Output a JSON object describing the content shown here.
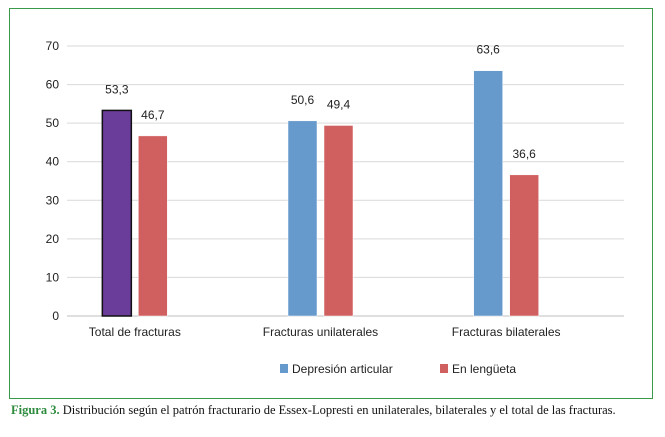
{
  "caption": {
    "label": "Figura 3.",
    "text": "Distribución según el patrón fracturario de Essex-Lopresti en unilaterales, bilaterales y el total de las fracturas."
  },
  "colors": {
    "frame": "#3a9a4a",
    "total": "#6a3d9a",
    "depresion": "#6699cc",
    "lengueta": "#d06060",
    "grid": "#d9d9d9"
  },
  "chart_data": {
    "type": "bar",
    "title": "",
    "xlabel": "",
    "ylabel": "",
    "ylim": [
      0,
      70
    ],
    "yticks": [
      0,
      10,
      20,
      30,
      40,
      50,
      60,
      70
    ],
    "grid": true,
    "legend_position": "bottom",
    "categories": [
      "Total de fracturas",
      "Fracturas unilaterales",
      "Fracturas bilaterales"
    ],
    "series": [
      {
        "name": "Depresión articular",
        "values": [
          53.3,
          50.6,
          63.6
        ],
        "labels": [
          "53,3",
          "50,6",
          "63,6"
        ]
      },
      {
        "name": "En lengüeta",
        "values": [
          46.7,
          49.4,
          36.6
        ],
        "labels": [
          "46,7",
          "49,4",
          "36,6"
        ]
      }
    ]
  }
}
